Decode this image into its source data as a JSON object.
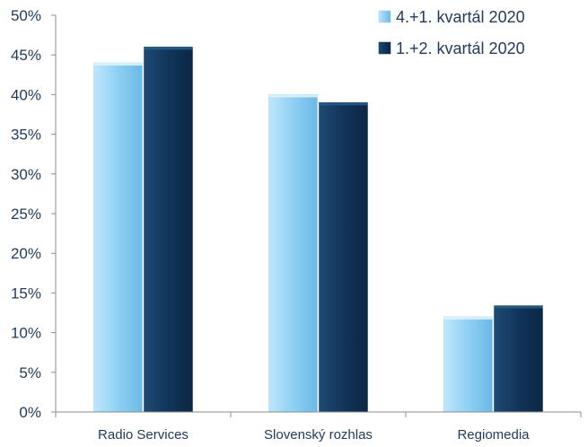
{
  "chart_data": {
    "type": "bar",
    "categories": [
      "Radio Services",
      "Slovenský rozhlas",
      "Regiomedia"
    ],
    "series": [
      {
        "name": "4.+1. kvartál 2020",
        "values": [
          44,
          40,
          12
        ],
        "color": "#8fd0f4"
      },
      {
        "name": "1.+2. kvartál 2020",
        "values": [
          46,
          39,
          13.4
        ],
        "color": "#11355a"
      }
    ],
    "ylim": [
      0,
      50
    ],
    "yticks": [
      0,
      5,
      10,
      15,
      20,
      25,
      30,
      35,
      40,
      45,
      50
    ],
    "ytick_labels": [
      "0%",
      "5%",
      "10%",
      "15%",
      "20%",
      "25%",
      "30%",
      "35%",
      "40%",
      "45%",
      "50%"
    ],
    "grid": false,
    "legend_position": "top-right"
  }
}
